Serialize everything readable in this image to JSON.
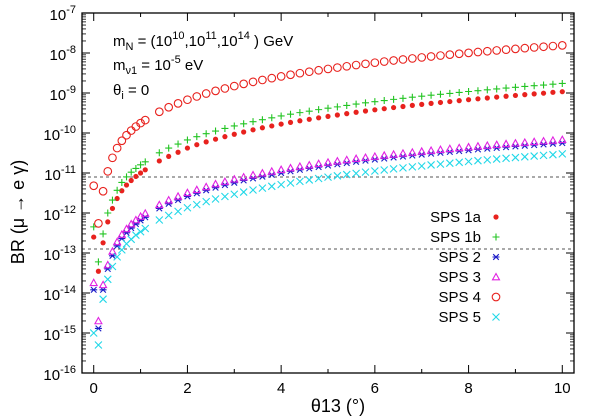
{
  "chart_data": {
    "type": "scatter",
    "xlabel": "θ13  (°)",
    "ylabel": "BR (μ → e γ)",
    "xlim": [
      -0.25,
      10.25
    ],
    "ylim_log10": [
      -16,
      -7
    ],
    "y_scale": "log",
    "xticks": [
      0,
      2,
      4,
      6,
      8,
      10
    ],
    "yticks": [
      {
        "base": "10",
        "exp": "-16"
      },
      {
        "base": "10",
        "exp": "-15"
      },
      {
        "base": "10",
        "exp": "-14"
      },
      {
        "base": "10",
        "exp": "-13"
      },
      {
        "base": "10",
        "exp": "-12"
      },
      {
        "base": "10",
        "exp": "-11"
      },
      {
        "base": "10",
        "exp": "-10"
      },
      {
        "base": "10",
        "exp": "-9"
      },
      {
        "base": "10",
        "exp": "-8"
      },
      {
        "base": "10",
        "exp": "-7"
      }
    ],
    "reference_lines_log10": [
      -11.1,
      -12.9
    ],
    "annotations": {
      "line1": {
        "main": "m",
        "sub": "N",
        "text1": " = (10",
        "sup1": "10",
        "text2": ",10",
        "sup2": "11",
        "text3": ",10",
        "sup3": "14",
        "text4": " ) GeV"
      },
      "line2": {
        "main": "m",
        "sub": "ν1",
        "text1": " = 10",
        "sup1": "-5",
        "text2": " eV"
      },
      "line3": {
        "main": "θ",
        "sub": "i",
        "text1": " = 0"
      }
    },
    "legend_position": "lower-right",
    "series": [
      {
        "name": "SPS 1a",
        "marker": "dot",
        "color": "#e8221e",
        "x": [
          0,
          0.1,
          0.2,
          0.3,
          0.4,
          0.5,
          0.6,
          0.7,
          0.8,
          0.9,
          1.0,
          1.1,
          1.4,
          1.6,
          1.8,
          2.0,
          2.2,
          2.4,
          2.6,
          2.8,
          3.0,
          3.2,
          3.4,
          3.6,
          3.8,
          4.0,
          4.2,
          4.4,
          4.6,
          4.8,
          5.0,
          5.2,
          5.4,
          5.6,
          5.8,
          6.0,
          6.2,
          6.4,
          6.6,
          6.8,
          7.0,
          7.2,
          7.4,
          7.6,
          7.8,
          8.0,
          8.2,
          8.4,
          8.6,
          8.8,
          9.0,
          9.2,
          9.4,
          9.6,
          9.8,
          10.0
        ],
        "y": [
          2.5e-13,
          3.5e-14,
          1.8e-13,
          6e-13,
          1.3e-12,
          2.3e-12,
          3.6e-12,
          5e-12,
          6.5e-12,
          8.2e-12,
          1e-11,
          1.2e-11,
          2e-11,
          2.6e-11,
          3.3e-11,
          4.2e-11,
          5.1e-11,
          6e-11,
          7e-11,
          8.1e-11,
          9.3e-11,
          1.06e-10,
          1.2e-10,
          1.35e-10,
          1.5e-10,
          1.67e-10,
          1.84e-10,
          2.02e-10,
          2.2e-10,
          2.4e-10,
          2.6e-10,
          2.82e-10,
          3.05e-10,
          3.3e-10,
          3.55e-10,
          3.8e-10,
          4.05e-10,
          4.33e-10,
          4.6e-10,
          4.9e-10,
          5.2e-10,
          5.5e-10,
          5.8e-10,
          6.1e-10,
          6.45e-10,
          6.8e-10,
          7.15e-10,
          7.5e-10,
          7.9e-10,
          8.3e-10,
          8.7e-10,
          9.1e-10,
          9.5e-10,
          9.9e-10,
          1.04e-09,
          1.08e-09
        ]
      },
      {
        "name": "SPS 1b",
        "marker": "plus",
        "color": "#22c422",
        "x": [
          0,
          0.1,
          0.2,
          0.3,
          0.4,
          0.5,
          0.6,
          0.7,
          0.8,
          0.9,
          1.0,
          1.1,
          1.4,
          1.6,
          1.8,
          2.0,
          2.2,
          2.4,
          2.6,
          2.8,
          3.0,
          3.2,
          3.4,
          3.6,
          3.8,
          4.0,
          4.2,
          4.4,
          4.6,
          4.8,
          5.0,
          5.2,
          5.4,
          5.6,
          5.8,
          6.0,
          6.2,
          6.4,
          6.6,
          6.8,
          7.0,
          7.2,
          7.4,
          7.6,
          7.8,
          8.0,
          8.2,
          8.4,
          8.6,
          8.8,
          9.0,
          9.2,
          9.4,
          9.6,
          9.8,
          10.0
        ],
        "y": [
          4.5e-13,
          6e-14,
          3e-13,
          1e-12,
          2.1e-12,
          3.7e-12,
          5.8e-12,
          8e-12,
          1.05e-11,
          1.3e-11,
          1.6e-11,
          1.9e-11,
          3.2e-11,
          4.2e-11,
          5.3e-11,
          6.7e-11,
          8.1e-11,
          9.6e-11,
          1.12e-10,
          1.3e-10,
          1.5e-10,
          1.7e-10,
          1.92e-10,
          2.15e-10,
          2.4e-10,
          2.67e-10,
          2.95e-10,
          3.23e-10,
          3.52e-10,
          3.84e-10,
          4.16e-10,
          4.5e-10,
          4.88e-10,
          5.28e-10,
          5.68e-10,
          6.08e-10,
          6.48e-10,
          6.93e-10,
          7.36e-10,
          7.84e-10,
          8.32e-10,
          8.8e-10,
          9.28e-10,
          9.76e-10,
          1.03e-09,
          1.09e-09,
          1.14e-09,
          1.2e-09,
          1.26e-09,
          1.33e-09,
          1.39e-09,
          1.46e-09,
          1.52e-09,
          1.58e-09,
          1.66e-09,
          1.73e-09
        ]
      },
      {
        "name": "SPS 2",
        "marker": "asterisk",
        "color": "#1c1cc8",
        "x": [
          0,
          0.1,
          0.2,
          0.3,
          0.4,
          0.5,
          0.6,
          0.7,
          0.8,
          0.9,
          1.0,
          1.1,
          1.4,
          1.6,
          1.8,
          2.0,
          2.2,
          2.4,
          2.6,
          2.8,
          3.0,
          3.2,
          3.4,
          3.6,
          3.8,
          4.0,
          4.2,
          4.4,
          4.6,
          4.8,
          5.0,
          5.2,
          5.4,
          5.6,
          5.8,
          6.0,
          6.2,
          6.4,
          6.6,
          6.8,
          7.0,
          7.2,
          7.4,
          7.6,
          7.8,
          8.0,
          8.2,
          8.4,
          8.6,
          8.8,
          9.0,
          9.2,
          9.4,
          9.6,
          9.8,
          10.0
        ],
        "y": [
          1.2e-14,
          1.3e-15,
          1.2e-14,
          4e-14,
          8.5e-14,
          1.5e-13,
          2.3e-13,
          3.2e-13,
          4.2e-13,
          5.3e-13,
          6.5e-13,
          7.8e-13,
          1.3e-12,
          1.7e-12,
          2.1e-12,
          2.6e-12,
          3.1e-12,
          3.7e-12,
          4.3e-12,
          5e-12,
          5.7e-12,
          6.5e-12,
          7.3e-12,
          8.1e-12,
          9e-12,
          1e-11,
          1.1e-11,
          1.2e-11,
          1.3e-11,
          1.41e-11,
          1.53e-11,
          1.65e-11,
          1.77e-11,
          1.9e-11,
          2.03e-11,
          2.16e-11,
          2.3e-11,
          2.44e-11,
          2.58e-11,
          2.73e-11,
          2.88e-11,
          3.04e-11,
          3.2e-11,
          3.36e-11,
          3.53e-11,
          3.7e-11,
          3.88e-11,
          4.06e-11,
          4.24e-11,
          4.42e-11,
          4.6e-11,
          4.8e-11,
          4.98e-11,
          5.18e-11,
          5.38e-11,
          5.6e-11
        ]
      },
      {
        "name": "SPS 3",
        "marker": "triangle",
        "color": "#e222e2",
        "x": [
          0,
          0.1,
          0.2,
          0.3,
          0.4,
          0.5,
          0.6,
          0.7,
          0.8,
          0.9,
          1.0,
          1.1,
          1.4,
          1.6,
          1.8,
          2.0,
          2.2,
          2.4,
          2.6,
          2.8,
          3.0,
          3.2,
          3.4,
          3.6,
          3.8,
          4.0,
          4.2,
          4.4,
          4.6,
          4.8,
          5.0,
          5.2,
          5.4,
          5.6,
          5.8,
          6.0,
          6.2,
          6.4,
          6.6,
          6.8,
          7.0,
          7.2,
          7.4,
          7.6,
          7.8,
          8.0,
          8.2,
          8.4,
          8.6,
          8.8,
          9.0,
          9.2,
          9.4,
          9.6,
          9.8,
          10.0
        ],
        "y": [
          1.8e-14,
          2e-15,
          1.6e-14,
          5e-14,
          1.1e-13,
          1.9e-13,
          2.9e-13,
          4e-13,
          5.3e-13,
          6.7e-13,
          8.2e-13,
          9.8e-13,
          1.6e-12,
          2.1e-12,
          2.6e-12,
          3.2e-12,
          3.8e-12,
          4.5e-12,
          5.3e-12,
          6.1e-12,
          7e-12,
          7.9e-12,
          8.9e-12,
          9.9e-12,
          1.1e-11,
          1.21e-11,
          1.33e-11,
          1.45e-11,
          1.57e-11,
          1.7e-11,
          1.84e-11,
          1.98e-11,
          2.13e-11,
          2.28e-11,
          2.43e-11,
          2.59e-11,
          2.75e-11,
          2.92e-11,
          3.1e-11,
          3.28e-11,
          3.46e-11,
          3.65e-11,
          3.84e-11,
          4.04e-11,
          4.24e-11,
          4.45e-11,
          4.66e-11,
          4.88e-11,
          5.1e-11,
          5.33e-11,
          5.56e-11,
          5.8e-11,
          6.04e-11,
          6.28e-11,
          6.54e-11,
          6.8e-11
        ]
      },
      {
        "name": "SPS 4",
        "marker": "circle",
        "color": "#e8221e",
        "x": [
          0,
          0.1,
          0.2,
          0.3,
          0.4,
          0.5,
          0.6,
          0.7,
          0.8,
          0.9,
          1.0,
          1.1,
          1.4,
          1.6,
          1.8,
          2.0,
          2.2,
          2.4,
          2.6,
          2.8,
          3.0,
          3.2,
          3.4,
          3.6,
          3.8,
          4.0,
          4.2,
          4.4,
          4.6,
          4.8,
          5.0,
          5.2,
          5.4,
          5.6,
          5.8,
          6.0,
          6.2,
          6.4,
          6.6,
          6.8,
          7.0,
          7.2,
          7.4,
          7.6,
          7.8,
          8.0,
          8.2,
          8.4,
          8.6,
          8.8,
          9.0,
          9.2,
          9.4,
          9.6,
          9.8,
          10.0
        ],
        "y": [
          4.8e-12,
          5.5e-13,
          3.5e-12,
          1.1e-11,
          2.4e-11,
          4.2e-11,
          6.4e-11,
          8.8e-11,
          1.15e-10,
          1.45e-10,
          1.77e-10,
          2.1e-10,
          3.4e-10,
          4.4e-10,
          5.5e-10,
          6.8e-10,
          8.2e-10,
          9.7e-10,
          1.13e-09,
          1.3e-09,
          1.49e-09,
          1.69e-09,
          1.9e-09,
          2.12e-09,
          2.35e-09,
          2.6e-09,
          2.86e-09,
          3.13e-09,
          3.41e-09,
          3.7e-09,
          4e-09,
          4.32e-09,
          4.65e-09,
          5e-09,
          5.36e-09,
          5.73e-09,
          6.11e-09,
          6.5e-09,
          6.9e-09,
          7.32e-09,
          7.75e-09,
          8.19e-09,
          8.64e-09,
          9.1e-09,
          9.58e-09,
          1.007e-08,
          1.057e-08,
          1.108e-08,
          1.16e-08,
          1.213e-08,
          1.267e-08,
          1.322e-08,
          1.378e-08,
          1.435e-08,
          1.493e-08,
          1.55e-08
        ]
      },
      {
        "name": "SPS 5",
        "marker": "cross",
        "color": "#22d8e8",
        "x": [
          0,
          0.1,
          0.2,
          0.3,
          0.4,
          0.5,
          0.6,
          0.7,
          0.8,
          0.9,
          1.0,
          1.1,
          1.4,
          1.6,
          1.8,
          2.0,
          2.2,
          2.4,
          2.6,
          2.8,
          3.0,
          3.2,
          3.4,
          3.6,
          3.8,
          4.0,
          4.2,
          4.4,
          4.6,
          4.8,
          5.0,
          5.2,
          5.4,
          5.6,
          5.8,
          6.0,
          6.2,
          6.4,
          6.6,
          6.8,
          7.0,
          7.2,
          7.4,
          7.6,
          7.8,
          8.0,
          8.2,
          8.4,
          8.6,
          8.8,
          9.0,
          9.2,
          9.4,
          9.6,
          9.8,
          10.0
        ],
        "y": [
          1e-15,
          5e-16,
          7e-15,
          2.2e-14,
          4.6e-14,
          8e-14,
          1.2e-13,
          1.7e-13,
          2.2e-13,
          2.8e-13,
          3.4e-13,
          4.1e-13,
          6.7e-13,
          8.7e-13,
          1.1e-12,
          1.35e-12,
          1.62e-12,
          1.92e-12,
          2.24e-12,
          2.58e-12,
          2.95e-12,
          3.34e-12,
          3.75e-12,
          4.19e-12,
          4.65e-12,
          5.13e-12,
          5.63e-12,
          6.16e-12,
          6.71e-12,
          7.28e-12,
          7.88e-12,
          8.5e-12,
          9.14e-12,
          9.8e-12,
          1.05e-11,
          1.12e-11,
          1.19e-11,
          1.27e-11,
          1.34e-11,
          1.42e-11,
          1.5e-11,
          1.59e-11,
          1.67e-11,
          1.76e-11,
          1.85e-11,
          1.94e-11,
          2.03e-11,
          2.13e-11,
          2.23e-11,
          2.33e-11,
          2.43e-11,
          2.54e-11,
          2.65e-11,
          2.76e-11,
          2.87e-11,
          3e-11
        ]
      }
    ]
  }
}
